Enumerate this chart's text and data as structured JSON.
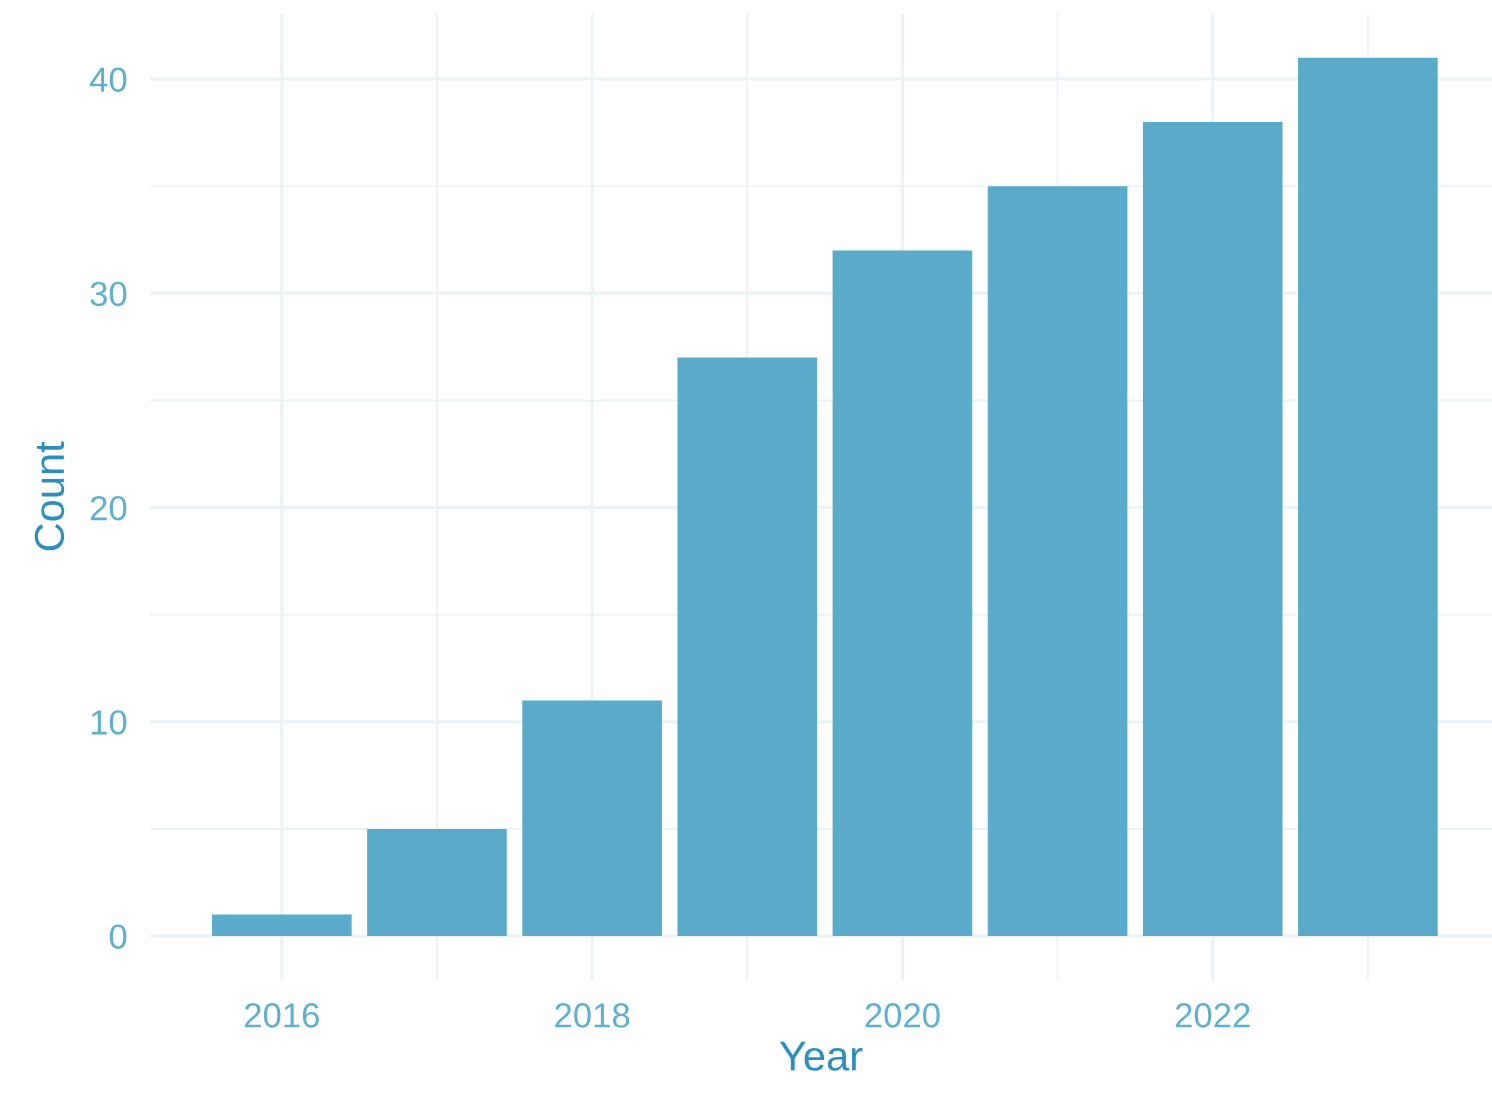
{
  "chart_data": {
    "type": "bar",
    "xlabel": "Year",
    "ylabel": "Count",
    "x": [
      2016,
      2017,
      2018,
      2019,
      2020,
      2021,
      2022,
      2023
    ],
    "values": [
      1,
      5,
      11,
      27,
      32,
      35,
      38,
      41
    ],
    "color": "#5aabca",
    "xlim": [
      2015.15,
      2023.8
    ],
    "xticks": [
      2016,
      2018,
      2020,
      2022
    ],
    "ylim": [
      -2.05,
      43.05
    ],
    "yticks": [
      0,
      10,
      20,
      30,
      40
    ],
    "grid": true
  }
}
